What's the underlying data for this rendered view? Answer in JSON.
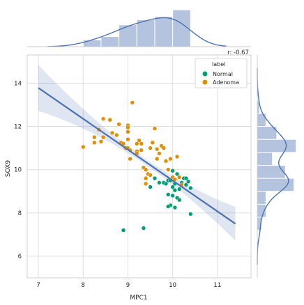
{
  "chart_data": {
    "type": "scatter",
    "title": "",
    "xlabel": "MPC1",
    "ylabel": "SOX9",
    "xlim": [
      6.75,
      11.75
    ],
    "ylim": [
      5,
      15.3
    ],
    "xticks": [
      "7",
      "8",
      "9",
      "10",
      "11"
    ],
    "yticks": [
      "6",
      "8",
      "10",
      "12",
      "14"
    ],
    "grid": true,
    "annotation": "r: -0.67",
    "legend": {
      "title": "label",
      "placement": "top-right"
    },
    "series": [
      {
        "name": "Normal",
        "color": "#029e73",
        "points": [
          [
            9.6,
            9.6
          ],
          [
            9.7,
            9.4
          ],
          [
            9.8,
            9.4
          ],
          [
            9.85,
            9.35
          ],
          [
            9.9,
            9.5
          ],
          [
            9.95,
            9.5
          ],
          [
            10.0,
            9.95
          ],
          [
            10.05,
            9.35
          ],
          [
            10.1,
            9.8
          ],
          [
            10.15,
            9.1
          ],
          [
            10.2,
            9.4
          ],
          [
            10.25,
            9.6
          ],
          [
            10.3,
            9.3
          ],
          [
            10.35,
            9.45
          ],
          [
            10.4,
            9.15
          ],
          [
            10.0,
            9.2
          ],
          [
            10.05,
            9.05
          ],
          [
            10.1,
            8.7
          ],
          [
            9.9,
            8.85
          ],
          [
            10.0,
            8.8
          ],
          [
            10.15,
            8.6
          ],
          [
            9.95,
            8.35
          ],
          [
            9.9,
            8.3
          ],
          [
            10.05,
            8.25
          ],
          [
            10.4,
            7.95
          ],
          [
            9.5,
            9.2
          ],
          [
            8.9,
            7.2
          ],
          [
            9.35,
            7.3
          ],
          [
            10.3,
            9.6
          ]
        ]
      },
      {
        "name": "Adenoma",
        "color": "#de8f05",
        "points": [
          [
            8.0,
            11.05
          ],
          [
            8.25,
            11.5
          ],
          [
            8.25,
            11.25
          ],
          [
            8.35,
            11.85
          ],
          [
            8.4,
            11.3
          ],
          [
            8.45,
            11.5
          ],
          [
            8.45,
            12.35
          ],
          [
            8.6,
            12.3
          ],
          [
            8.65,
            11.7
          ],
          [
            8.75,
            11.6
          ],
          [
            8.8,
            12.1
          ],
          [
            8.85,
            11.25
          ],
          [
            8.9,
            11.2
          ],
          [
            8.95,
            11.0
          ],
          [
            9.0,
            12.05
          ],
          [
            9.0,
            11.95
          ],
          [
            9.0,
            11.75
          ],
          [
            9.0,
            11.4
          ],
          [
            9.05,
            10.9
          ],
          [
            9.05,
            10.5
          ],
          [
            9.1,
            13.1
          ],
          [
            9.2,
            10.85
          ],
          [
            9.2,
            10.75
          ],
          [
            9.25,
            11.35
          ],
          [
            9.3,
            11.2
          ],
          [
            9.3,
            10.9
          ],
          [
            9.35,
            10.1
          ],
          [
            9.4,
            10.0
          ],
          [
            9.4,
            9.6
          ],
          [
            9.45,
            9.8
          ],
          [
            9.4,
            9.35
          ],
          [
            9.5,
            9.75
          ],
          [
            9.5,
            11.0
          ],
          [
            9.55,
            11.25
          ],
          [
            9.6,
            11.9
          ],
          [
            9.65,
            10.95
          ],
          [
            9.65,
            10.5
          ],
          [
            9.7,
            10.75
          ],
          [
            9.75,
            11.1
          ],
          [
            9.8,
            11.0
          ],
          [
            9.85,
            10.4
          ],
          [
            9.9,
            10.0
          ],
          [
            9.95,
            10.5
          ],
          [
            10.0,
            9.65
          ],
          [
            10.05,
            9.55
          ],
          [
            10.1,
            10.6
          ],
          [
            10.15,
            9.65
          ],
          [
            10.2,
            9.3
          ],
          [
            9.2,
            11.2
          ],
          [
            9.0,
            11.0
          ]
        ]
      }
    ],
    "regression": {
      "x": [
        7.0,
        11.4
      ],
      "y": [
        13.78,
        7.5
      ],
      "color": "#4c72b0"
    }
  }
}
